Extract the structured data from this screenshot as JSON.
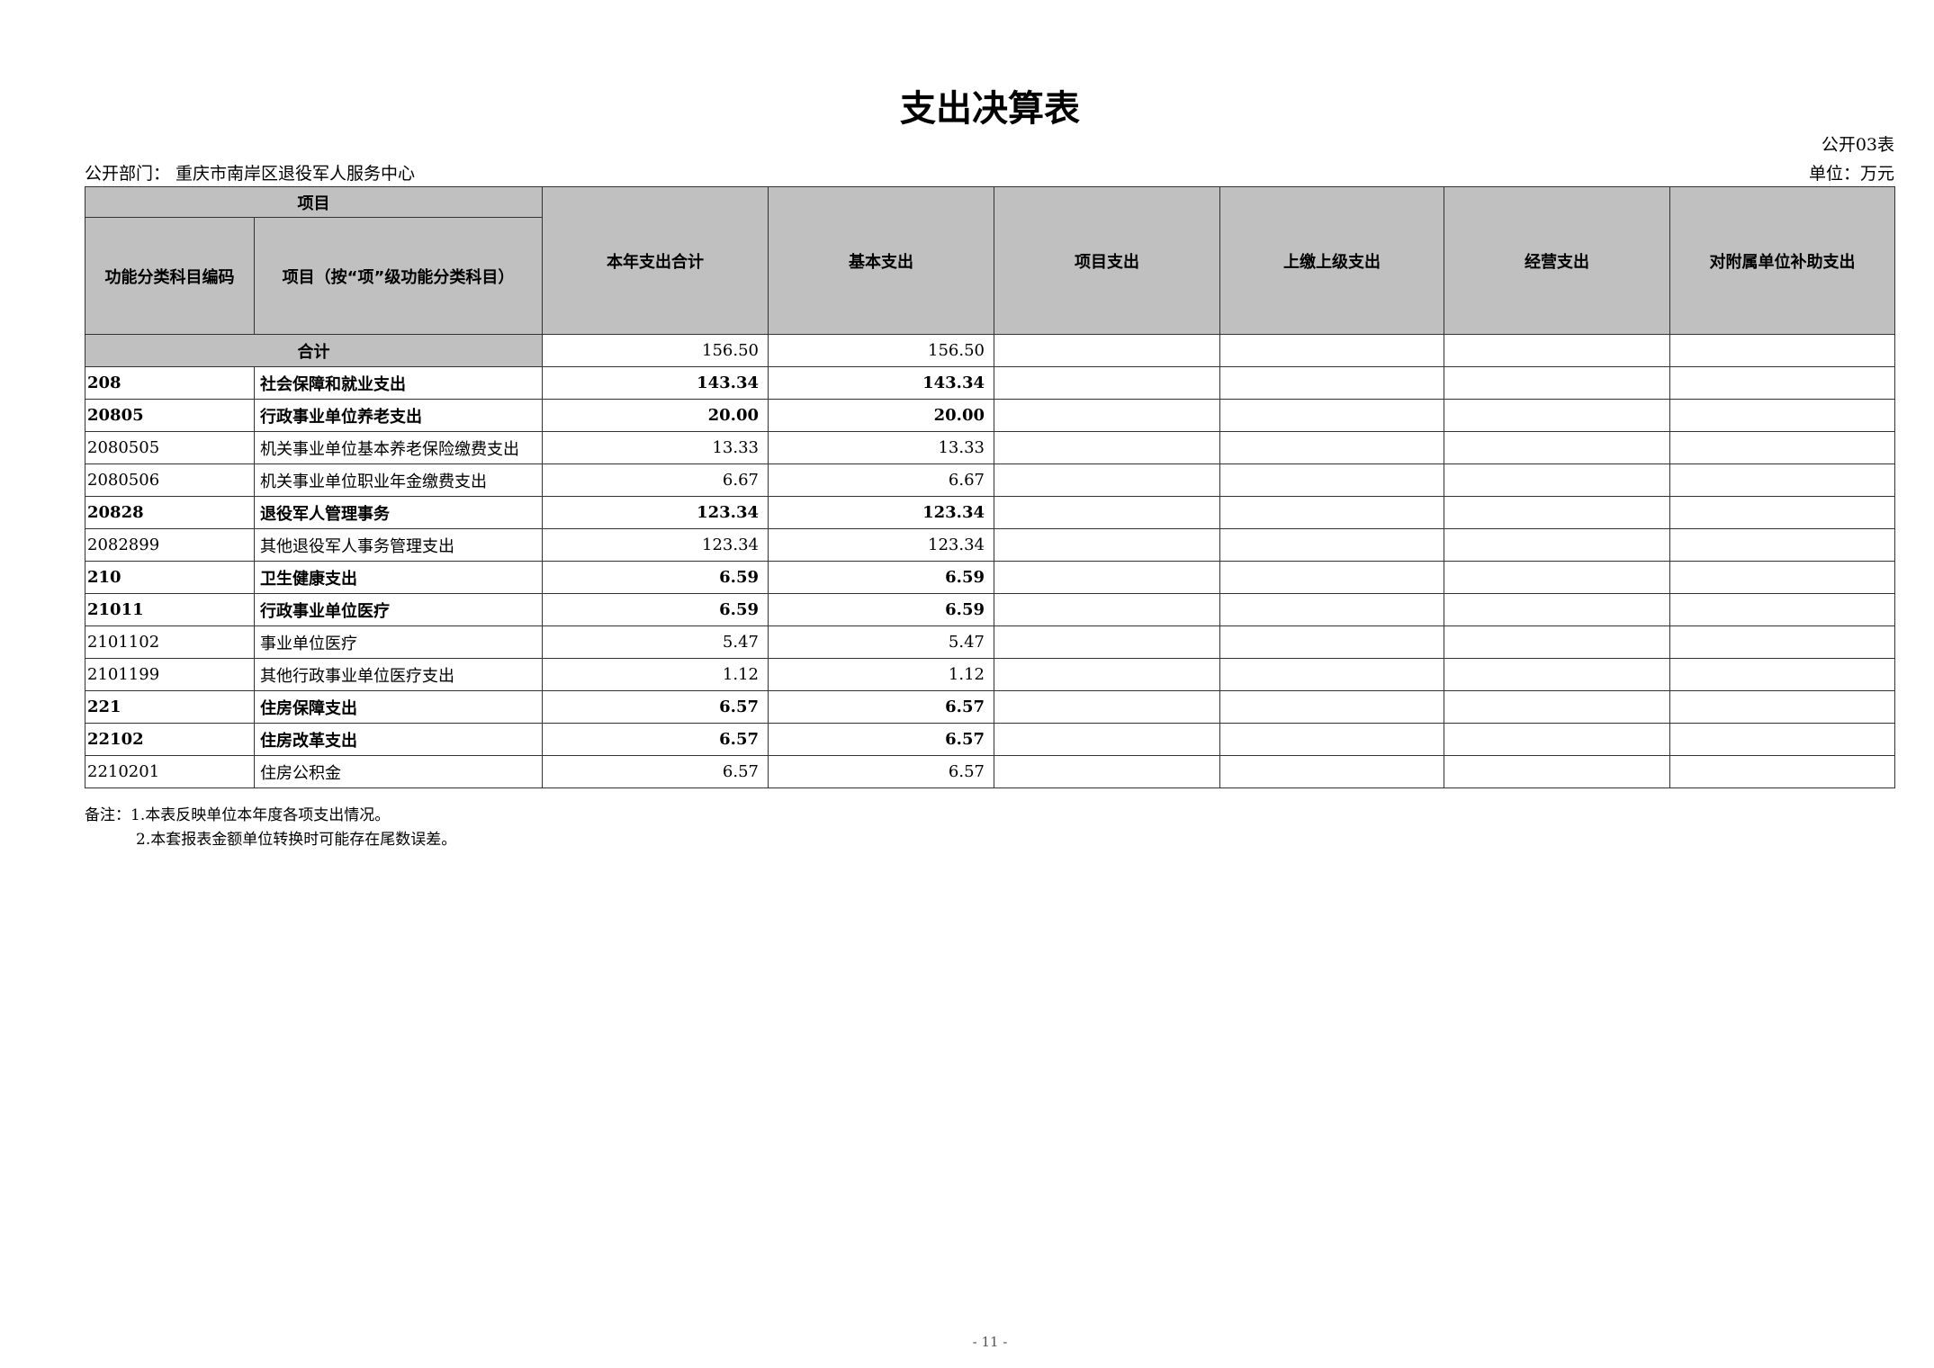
{
  "title": "支出决算表",
  "form_no": "公开03表",
  "department": "公开部门：  重庆市南岸区退役军人服务中心",
  "unit": "单位：万元",
  "header": {
    "project": "项目",
    "code": "功能分类科目编码",
    "name": "项目（按“项”级功能分类科目）",
    "columns": [
      "本年支出合计",
      "基本支出",
      "项目支出",
      "上缴上级支出",
      "经营支出",
      "对附属单位补助支出"
    ]
  },
  "total": {
    "label": "合计",
    "values": [
      "156.50",
      "156.50",
      "",
      "",
      "",
      ""
    ]
  },
  "rows": [
    {
      "code": "208",
      "name": "社会保障和就业支出",
      "bold": true,
      "values": [
        "143.34",
        "143.34",
        "",
        "",
        "",
        ""
      ]
    },
    {
      "code": "20805",
      "name": "行政事业单位养老支出",
      "bold": true,
      "values": [
        "20.00",
        "20.00",
        "",
        "",
        "",
        ""
      ]
    },
    {
      "code": "2080505",
      "name": "机关事业单位基本养老保险缴费支出",
      "bold": false,
      "values": [
        "13.33",
        "13.33",
        "",
        "",
        "",
        ""
      ]
    },
    {
      "code": "2080506",
      "name": "机关事业单位职业年金缴费支出",
      "bold": false,
      "values": [
        "6.67",
        "6.67",
        "",
        "",
        "",
        ""
      ]
    },
    {
      "code": "20828",
      "name": "退役军人管理事务",
      "bold": true,
      "values": [
        "123.34",
        "123.34",
        "",
        "",
        "",
        ""
      ]
    },
    {
      "code": "2082899",
      "name": "其他退役军人事务管理支出",
      "bold": false,
      "values": [
        "123.34",
        "123.34",
        "",
        "",
        "",
        ""
      ]
    },
    {
      "code": "210",
      "name": "卫生健康支出",
      "bold": true,
      "values": [
        "6.59",
        "6.59",
        "",
        "",
        "",
        ""
      ]
    },
    {
      "code": "21011",
      "name": "行政事业单位医疗",
      "bold": true,
      "values": [
        "6.59",
        "6.59",
        "",
        "",
        "",
        ""
      ]
    },
    {
      "code": "2101102",
      "name": "事业单位医疗",
      "bold": false,
      "values": [
        "5.47",
        "5.47",
        "",
        "",
        "",
        ""
      ]
    },
    {
      "code": "2101199",
      "name": "其他行政事业单位医疗支出",
      "bold": false,
      "values": [
        "1.12",
        "1.12",
        "",
        "",
        "",
        ""
      ]
    },
    {
      "code": "221",
      "name": "住房保障支出",
      "bold": true,
      "values": [
        "6.57",
        "6.57",
        "",
        "",
        "",
        ""
      ]
    },
    {
      "code": "22102",
      "name": "住房改革支出",
      "bold": true,
      "values": [
        "6.57",
        "6.57",
        "",
        "",
        "",
        ""
      ]
    },
    {
      "code": "2210201",
      "name": "住房公积金",
      "bold": false,
      "values": [
        "6.57",
        "6.57",
        "",
        "",
        "",
        ""
      ]
    }
  ],
  "notes": [
    "备注：1.本表反映单位本年度各项支出情况。",
    "2.本套报表金额单位转换时可能存在尾数误差。"
  ],
  "page_number": "- 11 -"
}
